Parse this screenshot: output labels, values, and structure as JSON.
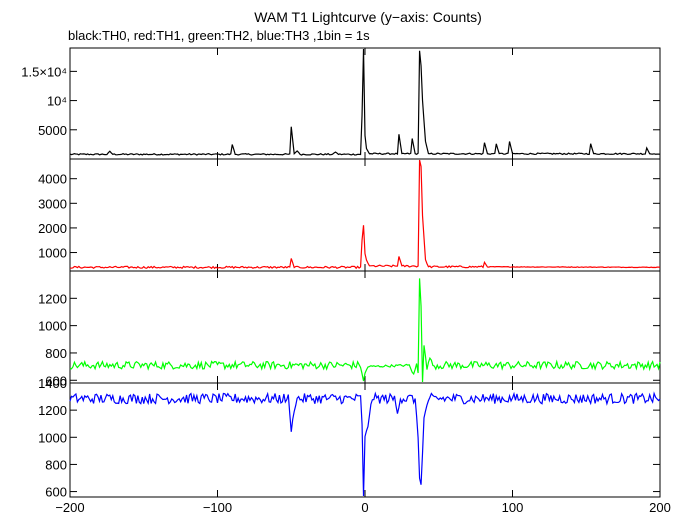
{
  "chart_data": {
    "type": "line",
    "title": "WAM T1 Lightcurve (y−axis: Counts)",
    "subtitle": "black:TH0, red:TH1, green:TH2, blue:TH3 ,1bin = 1s",
    "xlim": [
      -200,
      200
    ],
    "x_ticks": [
      -200,
      -100,
      0,
      100,
      200
    ],
    "x_tick_labels": [
      "−200",
      "−100",
      "0",
      "100",
      "200"
    ],
    "grid": false,
    "panels": [
      {
        "name": "TH0",
        "color": "#000000",
        "ylim": [
          0,
          19000
        ],
        "y_ticks": [
          5000,
          10000,
          15000
        ],
        "y_tick_labels": [
          "5000",
          "10⁴",
          "1.5×10⁴"
        ],
        "baseline": 800,
        "noise": 120,
        "points": [
          [
            -200,
            800
          ],
          [
            -175,
            800
          ],
          [
            -173,
            1300
          ],
          [
            -171,
            800
          ],
          [
            -91,
            800
          ],
          [
            -90,
            2500
          ],
          [
            -88,
            800
          ],
          [
            -51,
            800
          ],
          [
            -50,
            5500
          ],
          [
            -48,
            900
          ],
          [
            -46,
            1400
          ],
          [
            -44,
            800
          ],
          [
            -22,
            800
          ],
          [
            -20,
            1200
          ],
          [
            -18,
            800
          ],
          [
            -3,
            800
          ],
          [
            -2,
            7500
          ],
          [
            -1,
            19000
          ],
          [
            0,
            4000
          ],
          [
            1,
            1800
          ],
          [
            3,
            900
          ],
          [
            22,
            900
          ],
          [
            23,
            4200
          ],
          [
            25,
            900
          ],
          [
            31,
            900
          ],
          [
            32,
            3500
          ],
          [
            34,
            900
          ],
          [
            36,
            900
          ],
          [
            37,
            18500
          ],
          [
            38,
            16000
          ],
          [
            39,
            10000
          ],
          [
            41,
            3000
          ],
          [
            43,
            900
          ],
          [
            80,
            900
          ],
          [
            81,
            2800
          ],
          [
            83,
            900
          ],
          [
            88,
            900
          ],
          [
            89,
            2600
          ],
          [
            91,
            900
          ],
          [
            97,
            900
          ],
          [
            98,
            3000
          ],
          [
            100,
            900
          ],
          [
            152,
            900
          ],
          [
            153,
            2600
          ],
          [
            155,
            900
          ],
          [
            190,
            900
          ],
          [
            191,
            1900
          ],
          [
            193,
            900
          ],
          [
            200,
            800
          ]
        ]
      },
      {
        "name": "TH1",
        "color": "#ff0000",
        "ylim": [
          250,
          4800
        ],
        "y_ticks": [
          1000,
          2000,
          3000,
          4000
        ],
        "y_tick_labels": [
          "1000",
          "2000",
          "3000",
          "4000"
        ],
        "baseline": 400,
        "noise": 40,
        "points": [
          [
            -200,
            400
          ],
          [
            -51,
            400
          ],
          [
            -50,
            750
          ],
          [
            -48,
            400
          ],
          [
            -3,
            400
          ],
          [
            -2,
            1500
          ],
          [
            -1,
            2100
          ],
          [
            0,
            950
          ],
          [
            1,
            700
          ],
          [
            3,
            450
          ],
          [
            22,
            450
          ],
          [
            23,
            850
          ],
          [
            25,
            450
          ],
          [
            36,
            450
          ],
          [
            37,
            4800
          ],
          [
            38,
            4500
          ],
          [
            39,
            2500
          ],
          [
            41,
            700
          ],
          [
            43,
            420
          ],
          [
            80,
            420
          ],
          [
            81,
            600
          ],
          [
            83,
            420
          ],
          [
            200,
            400
          ]
        ]
      },
      {
        "name": "TH2",
        "color": "#00ff00",
        "ylim": [
          580,
          1400
        ],
        "y_ticks": [
          600,
          800,
          1000,
          1200
        ],
        "y_tick_labels": [
          "600",
          "800",
          "1000",
          "1200"
        ],
        "baseline": 715,
        "noise": 28,
        "points": [
          [
            -200,
            710
          ],
          [
            -3,
            710
          ],
          [
            -2,
            650
          ],
          [
            -1,
            590
          ],
          [
            0,
            650
          ],
          [
            2,
            700
          ],
          [
            30,
            710
          ],
          [
            33,
            640
          ],
          [
            35,
            720
          ],
          [
            36,
            650
          ],
          [
            37,
            1350
          ],
          [
            38,
            1150
          ],
          [
            39,
            520
          ],
          [
            40,
            860
          ],
          [
            42,
            680
          ],
          [
            44,
            770
          ],
          [
            46,
            710
          ],
          [
            200,
            710
          ]
        ]
      },
      {
        "name": "TH3",
        "color": "#0000ff",
        "ylim": [
          560,
          1400
        ],
        "y_ticks": [
          600,
          800,
          1000,
          1200,
          1400
        ],
        "y_tick_labels": [
          "600",
          "800",
          "1000",
          "1200",
          "1400"
        ],
        "baseline": 1285,
        "noise": 38,
        "points": [
          [
            -200,
            1285
          ],
          [
            -52,
            1285
          ],
          [
            -50,
            1050
          ],
          [
            -48,
            1200
          ],
          [
            -46,
            1285
          ],
          [
            -3,
            1285
          ],
          [
            -2,
            1100
          ],
          [
            -1,
            560
          ],
          [
            0,
            1000
          ],
          [
            2,
            1080
          ],
          [
            4,
            1250
          ],
          [
            6,
            1285
          ],
          [
            20,
            1285
          ],
          [
            22,
            1180
          ],
          [
            24,
            1285
          ],
          [
            34,
            1285
          ],
          [
            36,
            1000
          ],
          [
            37,
            700
          ],
          [
            38,
            660
          ],
          [
            39,
            880
          ],
          [
            40,
            1140
          ],
          [
            42,
            1240
          ],
          [
            44,
            1285
          ],
          [
            200,
            1285
          ]
        ]
      }
    ]
  }
}
